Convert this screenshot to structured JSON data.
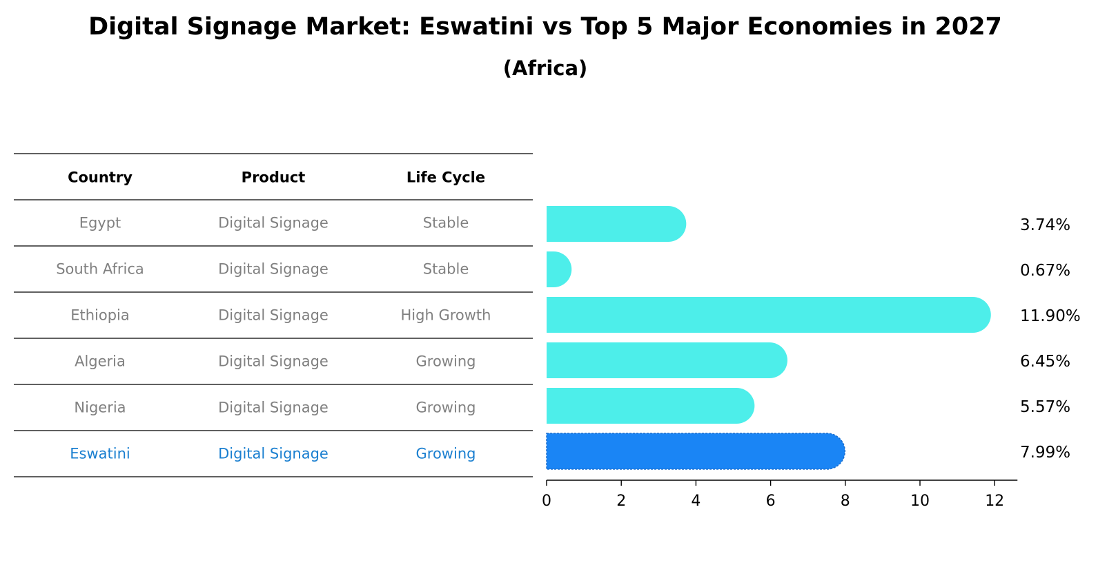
{
  "chart_data": {
    "type": "bar",
    "orientation": "horizontal",
    "title": "Digital Signage Market: Eswatini vs Top 5 Major Economies in 2027",
    "subtitle": "(Africa)",
    "table_headers": [
      "Country",
      "Product",
      "Life Cycle"
    ],
    "rows": [
      {
        "country": "Egypt",
        "product": "Digital Signage",
        "life_cycle": "Stable",
        "value": 3.74,
        "label": "3.74%",
        "highlight": false
      },
      {
        "country": "South Africa",
        "product": "Digital Signage",
        "life_cycle": "Stable",
        "value": 0.67,
        "label": "0.67%",
        "highlight": false
      },
      {
        "country": "Ethiopia",
        "product": "Digital Signage",
        "life_cycle": "High Growth",
        "value": 11.9,
        "label": "11.90%",
        "highlight": false
      },
      {
        "country": "Algeria",
        "product": "Digital Signage",
        "life_cycle": "Growing",
        "value": 6.45,
        "label": "6.45%",
        "highlight": false
      },
      {
        "country": "Nigeria",
        "product": "Digital Signage",
        "life_cycle": "Growing",
        "value": 5.57,
        "label": "5.57%",
        "highlight": false
      },
      {
        "country": "Eswatini",
        "product": "Digital Signage",
        "life_cycle": "Growing",
        "value": 7.99,
        "label": "7.99%",
        "highlight": true
      }
    ],
    "x_ticks": [
      "0",
      "2",
      "4",
      "6",
      "8",
      "10",
      "12"
    ],
    "xlim": [
      0,
      12.5
    ],
    "colors": {
      "bar": "#4deeea",
      "highlight_bar": "#1a85f5",
      "text_muted": "#808080",
      "text_highlight": "#1a7fd0"
    }
  }
}
